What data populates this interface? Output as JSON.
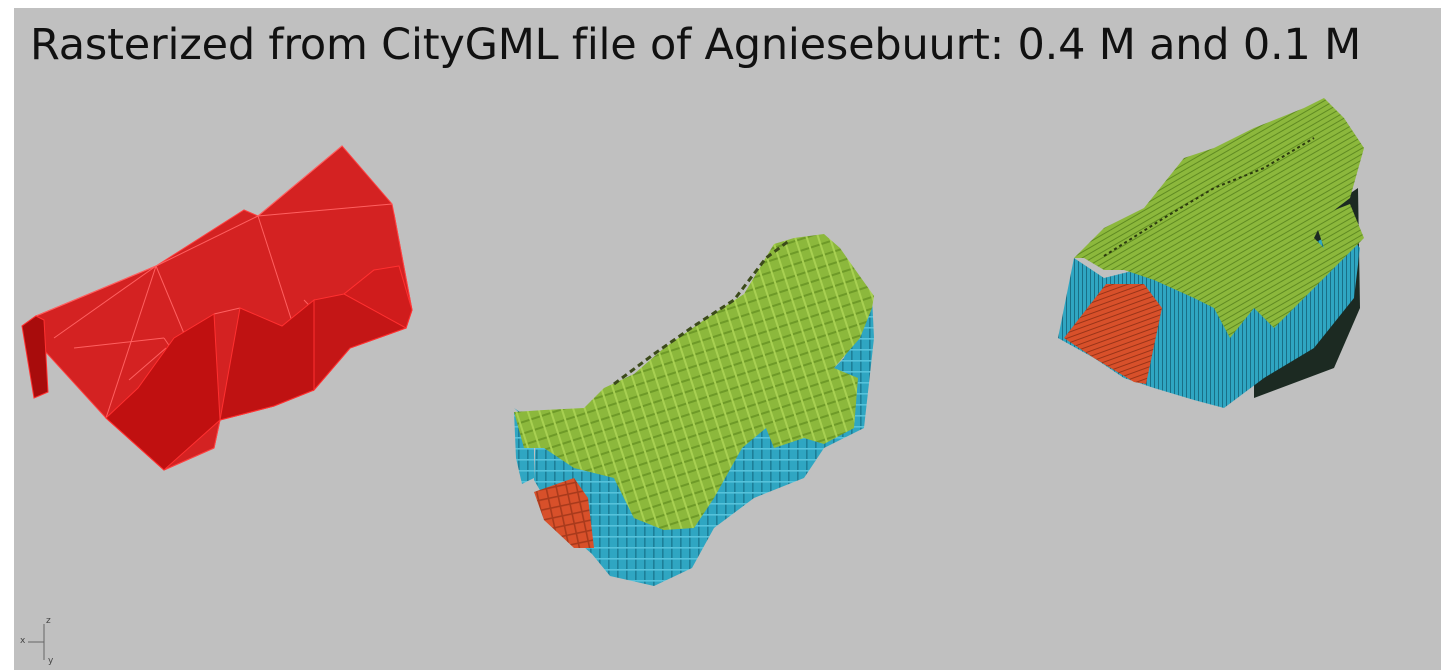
{
  "title": "Rasterized from CityGML file of Agniesebuurt: 0.4 M and 0.1 M",
  "axis": {
    "x": "x",
    "y": "y",
    "z": "z"
  },
  "colors": {
    "background": "#c0c0c0",
    "mesh_red": "#d21414",
    "voxel_green": "#8cb83c",
    "voxel_blue": "#2fa6c2",
    "voxel_orange": "#d8502a"
  },
  "objects": [
    {
      "id": "citygml-mesh",
      "kind": "triangulated building mesh"
    },
    {
      "id": "voxel-0.4m",
      "kind": "voxelized building",
      "resolution": "0.4 M"
    },
    {
      "id": "voxel-0.1m",
      "kind": "voxelized building",
      "resolution": "0.1 M"
    }
  ]
}
